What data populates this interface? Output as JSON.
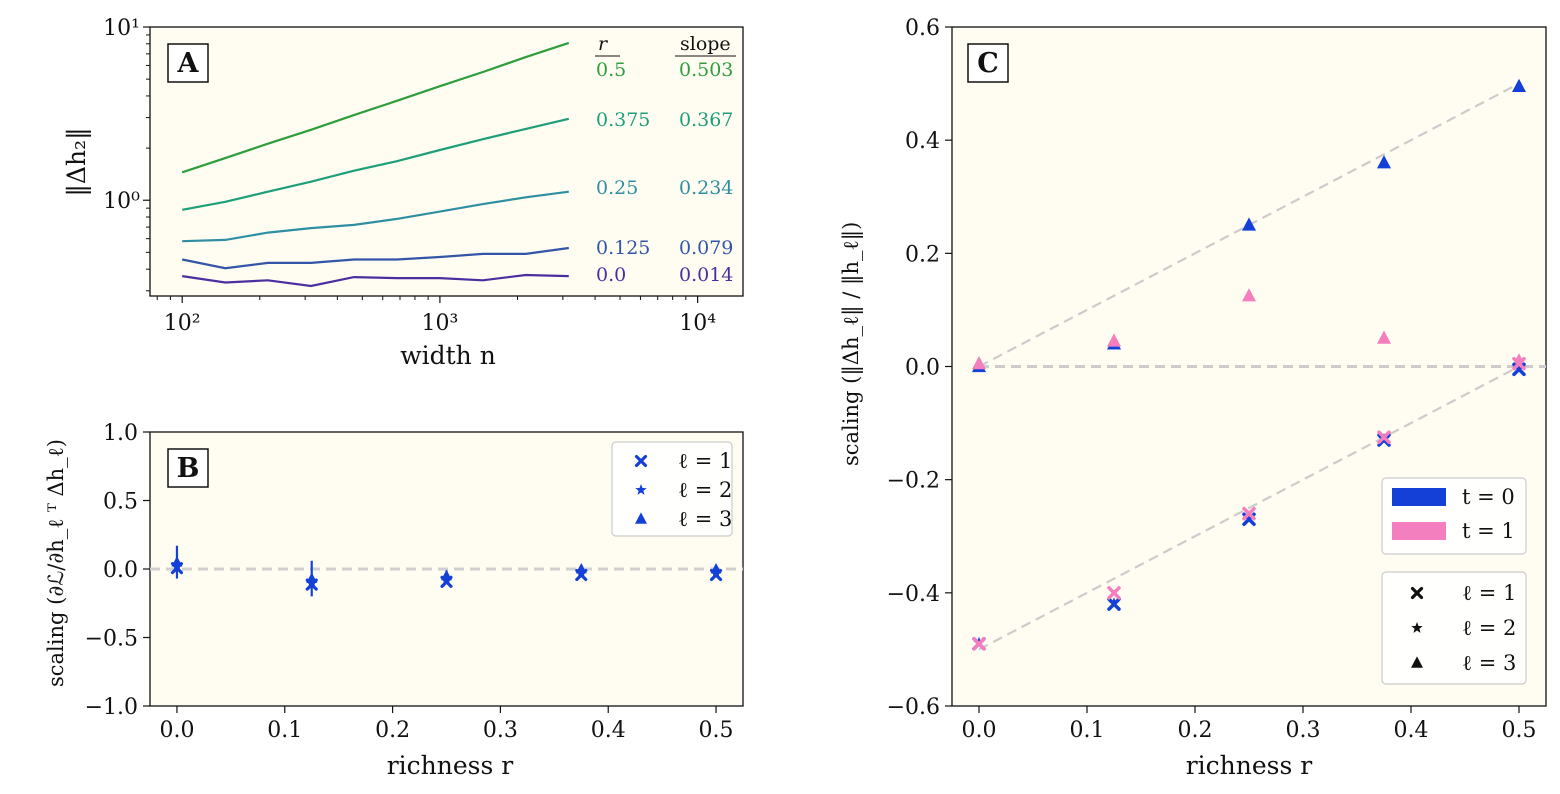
{
  "chart_data": [
    {
      "panel": "A",
      "type": "line",
      "xscale": "log",
      "yscale": "log",
      "xlabel": "width n",
      "ylabel": "‖Δh₂‖",
      "xticks": [
        "10²",
        "10³",
        "10⁴"
      ],
      "yticks": [
        "10⁰",
        "10¹"
      ],
      "xlim": [
        75,
        15000
      ],
      "ylim": [
        0.28,
        10
      ],
      "table_headers": {
        "r": "r",
        "slope": "slope"
      },
      "series": [
        {
          "r": "0.5",
          "slope": "0.503",
          "color": "#2e9e3c",
          "x": [
            100,
            147,
            215,
            316,
            464,
            681,
            1000,
            1468,
            2154,
            3162
          ],
          "y": [
            1.45,
            1.75,
            2.12,
            2.55,
            3.1,
            3.75,
            4.55,
            5.5,
            6.7,
            8.1
          ]
        },
        {
          "r": "0.375",
          "slope": "0.367",
          "color": "#1f9e7a",
          "x": [
            100,
            147,
            215,
            316,
            464,
            681,
            1000,
            1468,
            2154,
            3162
          ],
          "y": [
            0.88,
            0.98,
            1.12,
            1.28,
            1.48,
            1.68,
            1.95,
            2.25,
            2.58,
            2.95
          ]
        },
        {
          "r": "0.25",
          "slope": "0.234",
          "color": "#2f8fa2",
          "x": [
            100,
            147,
            215,
            316,
            464,
            681,
            1000,
            1468,
            2154,
            3162
          ],
          "y": [
            0.58,
            0.59,
            0.65,
            0.69,
            0.72,
            0.78,
            0.86,
            0.95,
            1.04,
            1.12
          ]
        },
        {
          "r": "0.125",
          "slope": "0.079",
          "color": "#3355a8",
          "x": [
            100,
            147,
            215,
            316,
            464,
            681,
            1000,
            1468,
            2154,
            3162
          ],
          "y": [
            0.455,
            0.405,
            0.435,
            0.435,
            0.455,
            0.455,
            0.47,
            0.49,
            0.49,
            0.53
          ]
        },
        {
          "r": "0.0",
          "slope": "0.014",
          "color": "#4b2fa0",
          "x": [
            100,
            147,
            215,
            316,
            464,
            681,
            1000,
            1468,
            2154,
            3162
          ],
          "y": [
            0.365,
            0.335,
            0.345,
            0.32,
            0.36,
            0.355,
            0.355,
            0.345,
            0.37,
            0.365
          ]
        }
      ]
    },
    {
      "panel": "B",
      "type": "scatter",
      "xlabel": "richness r",
      "ylabel": "scaling (∂ℒ/∂h_ℓ ᵀ Δh_ℓ)",
      "xticks": [
        "0.0",
        "0.1",
        "0.2",
        "0.3",
        "0.4",
        "0.5"
      ],
      "yticks": [
        "−1.0",
        "−0.5",
        "0.0",
        "0.5",
        "1.0"
      ],
      "xlim": [
        -0.025,
        0.525
      ],
      "ylim": [
        -1.0,
        1.0
      ],
      "legend": [
        "ℓ = 1",
        "ℓ = 2",
        "ℓ = 3"
      ],
      "legend_position": "top-right",
      "color": "#1440d8",
      "x": [
        0.0,
        0.125,
        0.25,
        0.375,
        0.5
      ],
      "y": [
        0.05,
        -0.07,
        -0.05,
        0.0,
        0.0
      ],
      "yerr": [
        0.12,
        0.13,
        0.04,
        0.02,
        0.01
      ]
    },
    {
      "panel": "C",
      "type": "scatter",
      "xlabel": "richness r",
      "ylabel": "scaling (‖Δh_ℓ‖ / ‖h_ℓ‖)",
      "xticks": [
        "0.0",
        "0.1",
        "0.2",
        "0.3",
        "0.4",
        "0.5"
      ],
      "yticks": [
        "−0.6",
        "−0.4",
        "−0.2",
        "0.0",
        "0.2",
        "0.4",
        "0.6"
      ],
      "xlim": [
        -0.025,
        0.525
      ],
      "ylim": [
        -0.6,
        0.6
      ],
      "legend_time": [
        {
          "label": "t = 0",
          "color": "#1440d8"
        },
        {
          "label": "t = 1",
          "color": "#f47fbf"
        }
      ],
      "legend_layer": [
        "ℓ = 1",
        "ℓ = 2",
        "ℓ = 3"
      ],
      "legend_position": "bottom-right",
      "x": [
        0.0,
        0.125,
        0.25,
        0.375,
        0.5
      ],
      "t0_layer3": [
        0.0,
        0.04,
        0.25,
        0.36,
        0.495
      ],
      "t1_layer3": [
        0.005,
        0.045,
        0.125,
        0.05,
        0.01
      ],
      "t0_layer1": [
        -0.49,
        -0.42,
        -0.27,
        -0.13,
        -0.005
      ],
      "t1_layer1": [
        -0.49,
        -0.4,
        -0.26,
        -0.125,
        0.005
      ],
      "ref_lines": [
        {
          "x": [
            0.0,
            0.5
          ],
          "y": [
            0.0,
            0.5
          ]
        },
        {
          "x": [
            0.0,
            0.5
          ],
          "y": [
            -0.5,
            0.0
          ]
        },
        {
          "x": [
            0.0,
            0.5
          ],
          "y": [
            0.0,
            0.0
          ]
        }
      ]
    }
  ]
}
